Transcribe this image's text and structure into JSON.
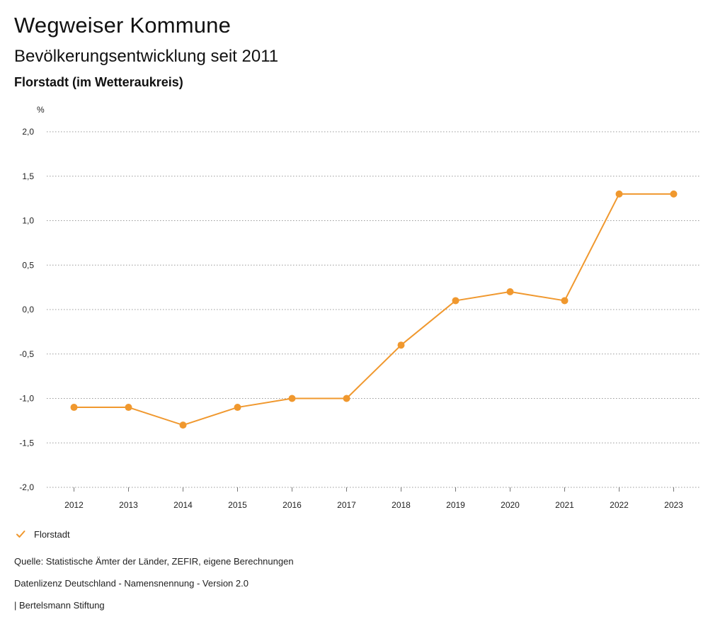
{
  "header": {
    "title": "Wegweiser Kommune",
    "subtitle": "Bevölkerungsentwicklung seit 2011",
    "place": "Florstadt (im Wetteraukreis)"
  },
  "chart_data": {
    "type": "line",
    "unit": "%",
    "categories": [
      "2012",
      "2013",
      "2014",
      "2015",
      "2016",
      "2017",
      "2018",
      "2019",
      "2020",
      "2021",
      "2022",
      "2023"
    ],
    "series": [
      {
        "name": "Florstadt",
        "values": [
          -1.1,
          -1.1,
          -1.3,
          -1.1,
          -1.0,
          -1.0,
          -0.4,
          0.1,
          0.2,
          0.1,
          1.3,
          1.3
        ],
        "color": "#f0982e"
      }
    ],
    "y_ticks": [
      2.0,
      1.5,
      1.0,
      0.5,
      0.0,
      -0.5,
      -1.0,
      -1.5,
      -2.0
    ],
    "y_tick_labels": [
      "2,0",
      "1,5",
      "1,0",
      "0,5",
      "0,0",
      "-0,5",
      "-1,0",
      "-1,5",
      "-2,0"
    ],
    "ylim": [
      -2.0,
      2.0
    ],
    "grid": "dotted",
    "legend": "bottom-left"
  },
  "legend": {
    "label": "Florstadt",
    "icon": "check-icon",
    "color": "#f0982e"
  },
  "footer": {
    "source": "Quelle: Statistische Ämter der Länder, ZEFIR, eigene Berechnungen",
    "license": "Datenlizenz Deutschland - Namensnennung - Version 2.0",
    "credit": "| Bertelsmann Stiftung"
  }
}
